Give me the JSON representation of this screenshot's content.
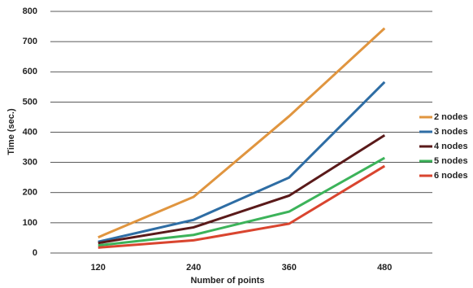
{
  "chart_data": {
    "type": "line",
    "x_label": "Number of points",
    "y_label": "Time (sec.)",
    "categories": [
      "120",
      "240",
      "360",
      "480"
    ],
    "series": [
      {
        "name": "2 nodes",
        "color": "#e0953f",
        "values": [
          52,
          186,
          453,
          744
        ]
      },
      {
        "name": "3 nodes",
        "color": "#2e6da4",
        "values": [
          37,
          110,
          250,
          566
        ]
      },
      {
        "name": "4 nodes",
        "color": "#5a1a1a",
        "values": [
          33,
          85,
          190,
          390
        ]
      },
      {
        "name": "5 nodes",
        "color": "#3cb35a",
        "values": [
          25,
          60,
          137,
          315
        ]
      },
      {
        "name": "6 nodes",
        "color": "#d9452f",
        "values": [
          18,
          42,
          97,
          288
        ]
      }
    ],
    "ylim": [
      0,
      800
    ],
    "yticks": [
      0,
      100,
      200,
      300,
      400,
      500,
      600,
      700,
      800
    ],
    "grid": true,
    "legend": "right"
  }
}
